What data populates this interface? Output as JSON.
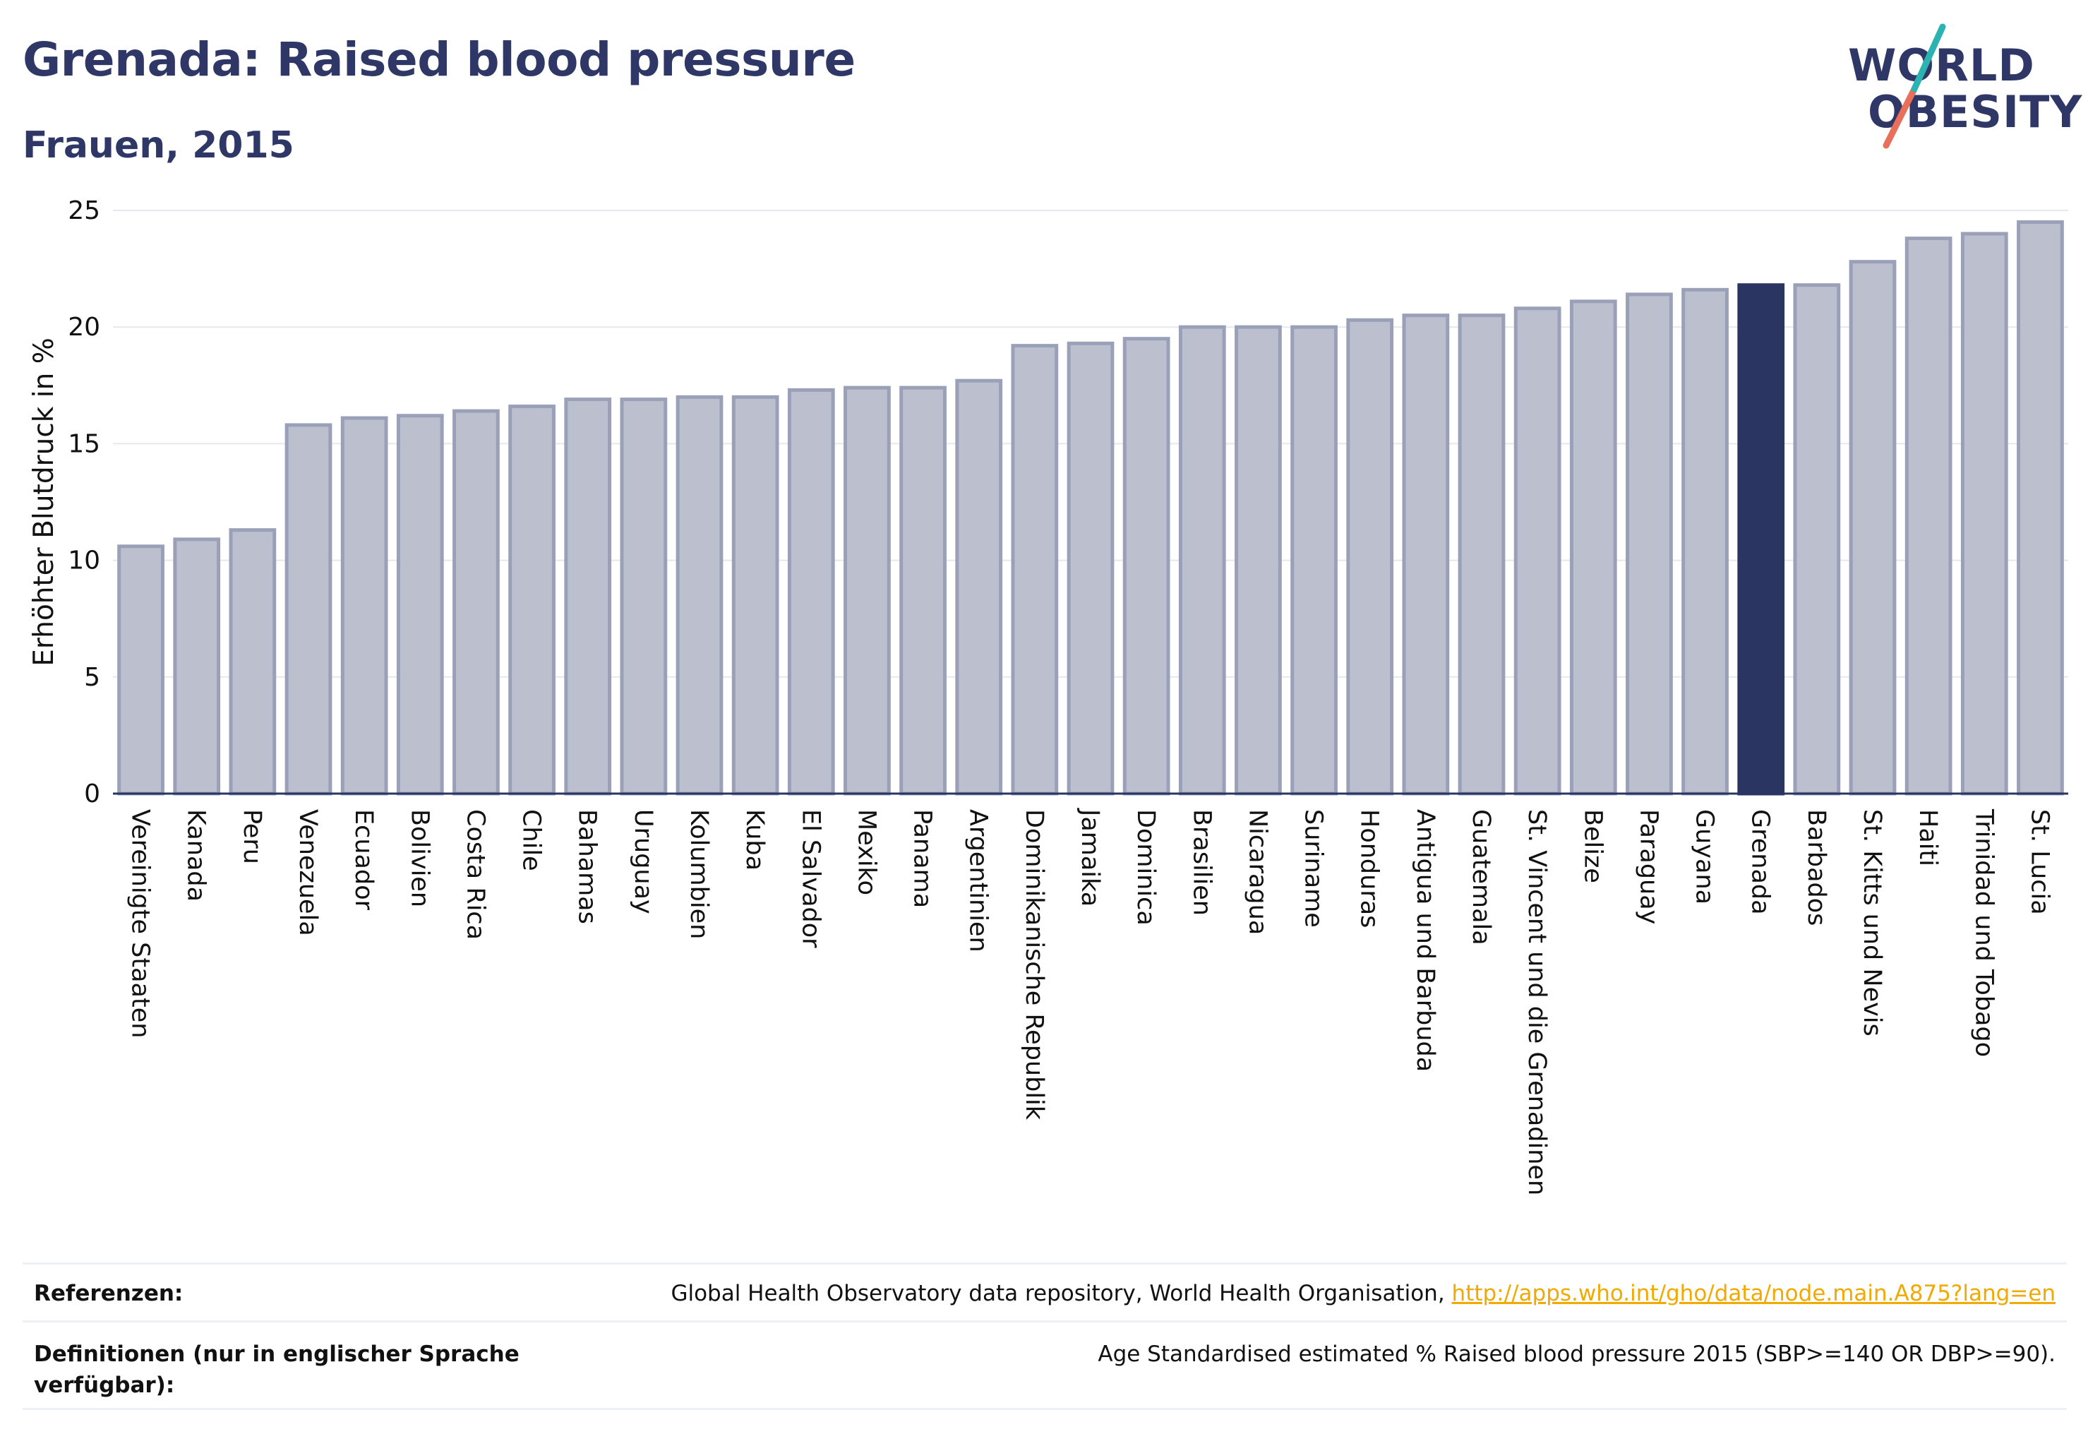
{
  "title": "Grenada: Raised blood pressure",
  "subtitle": "Frauen, 2015",
  "logo": {
    "line1": "WORLD",
    "line2": "OBESITY",
    "accent_colors": [
      "#2bb3b1",
      "#e8705a"
    ]
  },
  "colors": {
    "bar": "#bcc0ce",
    "bar_border": "#9aa0b8",
    "highlight": "#2b3561",
    "grid": "#e6e8ee",
    "axis": "#2b3561"
  },
  "chart_data": {
    "type": "bar",
    "ylabel": "Erhöhter Blutdruck in %",
    "ylim": [
      0,
      25
    ],
    "yticks": [
      0,
      5,
      10,
      15,
      20,
      25
    ],
    "highlight": "Grenada",
    "categories": [
      "Vereinigte Staaten",
      "Kanada",
      "Peru",
      "Venezuela",
      "Ecuador",
      "Bolivien",
      "Costa Rica",
      "Chile",
      "Bahamas",
      "Uruguay",
      "Kolumbien",
      "Kuba",
      "El Salvador",
      "Mexiko",
      "Panama",
      "Argentinien",
      "Dominikanische Republik",
      "Jamaika",
      "Dominica",
      "Brasilien",
      "Nicaragua",
      "Suriname",
      "Honduras",
      "Antigua und Barbuda",
      "Guatemala",
      "St. Vincent und die Grenadinen",
      "Belize",
      "Paraguay",
      "Guyana",
      "Grenada",
      "Barbados",
      "St. Kitts und Nevis",
      "Haiti",
      "Trinidad und Tobago",
      "St. Lucia"
    ],
    "values": [
      10.6,
      10.9,
      11.3,
      15.8,
      16.1,
      16.2,
      16.4,
      16.6,
      16.9,
      16.9,
      17.0,
      17.0,
      17.3,
      17.4,
      17.4,
      17.7,
      19.2,
      19.3,
      19.5,
      20.0,
      20.0,
      20.0,
      20.3,
      20.5,
      20.5,
      20.8,
      21.1,
      21.4,
      21.6,
      21.8,
      21.8,
      22.8,
      23.8,
      24.0,
      24.5
    ]
  },
  "footer": {
    "references_label": "Referenzen:",
    "references_text": "Global Health Observatory data repository, World Health Organisation, ",
    "references_link": "http://apps.who.int/gho/data/node.main.A875?lang=en",
    "definitions_label": "Definitionen (nur in englischer Sprache verfügbar):",
    "definitions_text": "Age Standardised estimated % Raised blood pressure 2015 (SBP>=140 OR DBP>=90)."
  }
}
